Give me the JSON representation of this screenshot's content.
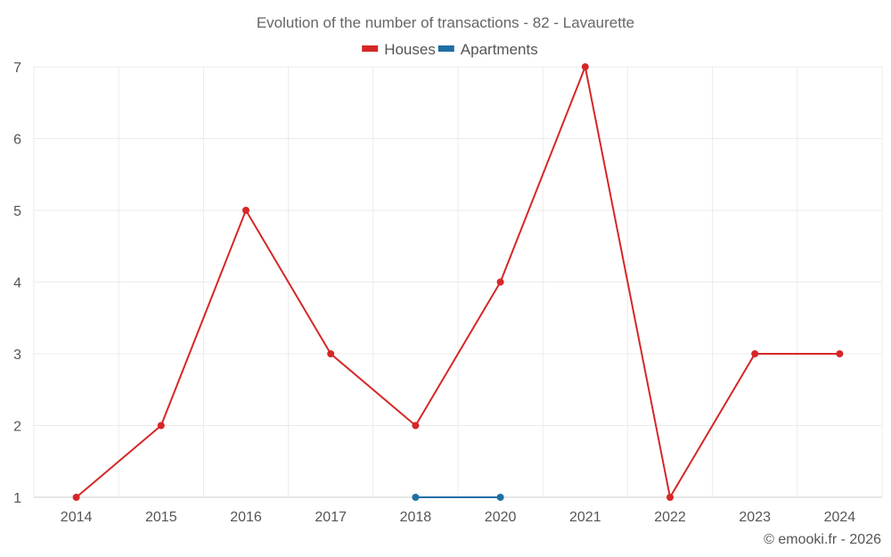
{
  "chart_data": {
    "type": "line",
    "title": "Evolution of the number of transactions - 82 - Lavaurette",
    "categories": [
      "2014",
      "2015",
      "2016",
      "2017",
      "2018",
      "2020",
      "2021",
      "2022",
      "2023",
      "2024"
    ],
    "series": [
      {
        "name": "Houses",
        "color": "#d62728",
        "values": [
          1,
          2,
          5,
          3,
          2,
          4,
          7,
          1,
          3,
          3
        ]
      },
      {
        "name": "Apartments",
        "color": "#1f6fa3",
        "values": [
          null,
          null,
          null,
          null,
          1,
          1,
          null,
          null,
          null,
          null
        ]
      }
    ],
    "y_ticks": [
      "1",
      "2",
      "3",
      "4",
      "5",
      "6",
      "7"
    ],
    "ylim": [
      1,
      7
    ],
    "grid": true,
    "legend_position": "top-center"
  },
  "credit": "© emooki.fr - 2026"
}
